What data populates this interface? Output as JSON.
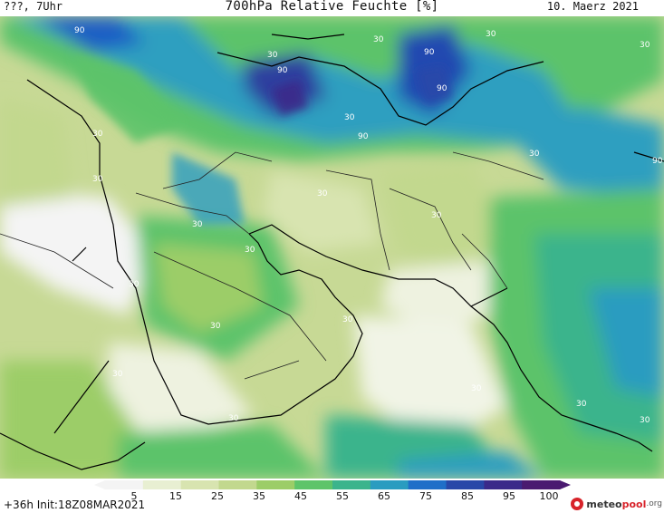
{
  "header": {
    "left": "???, 7Uhr",
    "title": "700hPa Relative Feuchte [%]",
    "date": "10. Maerz 2021"
  },
  "footer": {
    "init": "+36h Init:18Z08MAR2021",
    "logo_main": "meteo",
    "logo_accent": "pool",
    "logo_tld": ".org"
  },
  "legend": {
    "unit": "%",
    "ticks": [
      "5",
      "15",
      "25",
      "35",
      "45",
      "55",
      "65",
      "75",
      "85",
      "95",
      "100"
    ],
    "colors": [
      "#f4f4f4",
      "#e8efd2",
      "#d8e4b0",
      "#c2d88e",
      "#9ccd68",
      "#5ec46a",
      "#3bb48c",
      "#2a9cc0",
      "#1f6fc8",
      "#2848a8",
      "#3a2a8a",
      "#4a1a70"
    ]
  },
  "contour_labels": {
    "label_30": "30",
    "label_90": "90"
  },
  "map": {
    "region": "Middle East / Arabian Peninsula / Iran / India"
  }
}
